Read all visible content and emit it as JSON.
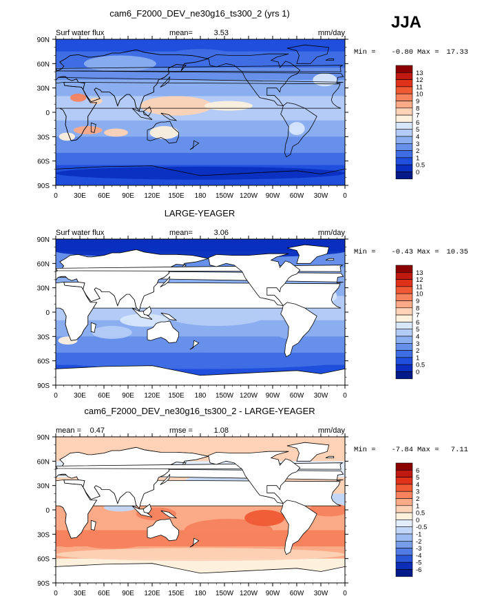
{
  "season": "JJA",
  "colors": {
    "land": "#ffffff",
    "frame": "#000000"
  },
  "lon_ticks": [
    "0",
    "30E",
    "60E",
    "90E",
    "120E",
    "150E",
    "180",
    "150W",
    "120W",
    "90W",
    "60W",
    "30W",
    "0"
  ],
  "lat_ticks": [
    "90N",
    "60N",
    "30N",
    "0",
    "30S",
    "60S",
    "90S"
  ],
  "chart_data": [
    {
      "type": "heatmap",
      "title": "cam6_F2000_DEV_ne30g16_ts300_2 (yrs 1)",
      "variable": "Surf water flux",
      "stat1_label": "mean=",
      "stat1_value": "3.53",
      "stat2_label": "",
      "stat2_value": "",
      "units": "mm/day",
      "min_label": "Min =",
      "min_value": "-0.80",
      "max_label": "Max =",
      "max_value": "17.33",
      "land_masked": false,
      "xlim": [
        0,
        360
      ],
      "ylim": [
        -90,
        90
      ],
      "colorbar_levels": [
        "13",
        "12",
        "11",
        "10",
        "9",
        "8",
        "7",
        "6",
        "5",
        "4",
        "3",
        "2",
        "1",
        "0.5",
        "0"
      ],
      "colorbar_colors": [
        "#8b0000",
        "#c01a10",
        "#e0321a",
        "#ef5a34",
        "#f7825e",
        "#fbaa88",
        "#fdd2b6",
        "#fdf0dd",
        "#d7e6fb",
        "#b3cbf6",
        "#8aaeef",
        "#6690ea",
        "#3f6ee4",
        "#1f4fdc",
        "#0a2fc0",
        "#001a8a"
      ],
      "field_regions": [
        {
          "lon": 150,
          "lat": 8,
          "rx": 45,
          "ry": 12,
          "value": 7
        },
        {
          "lon": 215,
          "lat": 8,
          "rx": 30,
          "ry": 6,
          "value": 6
        },
        {
          "lon": 40,
          "lat": -22,
          "rx": 18,
          "ry": 5,
          "value": 8
        },
        {
          "lon": 75,
          "lat": -25,
          "rx": 15,
          "ry": 5,
          "value": 7
        },
        {
          "lon": 135,
          "lat": -25,
          "rx": 18,
          "ry": 8,
          "value": 6
        },
        {
          "lon": 14,
          "lat": -30,
          "rx": 10,
          "ry": 5,
          "value": 6
        },
        {
          "lon": 28,
          "lat": 18,
          "rx": 10,
          "ry": 5,
          "value": 9
        },
        {
          "lon": 50,
          "lat": 14,
          "rx": 8,
          "ry": 4,
          "value": 7
        },
        {
          "lon": 300,
          "lat": -20,
          "rx": 10,
          "ry": 8,
          "value": 5
        },
        {
          "lon": 335,
          "lat": 40,
          "rx": 15,
          "ry": 8,
          "value": 5
        },
        {
          "lon": 80,
          "lat": 60,
          "rx": 45,
          "ry": 10,
          "value": 3
        },
        {
          "lon": 180,
          "lat": 70,
          "rx": 40,
          "ry": 8,
          "value": 1
        },
        {
          "lon": 180,
          "lat": -75,
          "rx": 180,
          "ry": 8,
          "value": 0
        }
      ]
    },
    {
      "type": "heatmap",
      "title": "LARGE-YEAGER",
      "variable": "Surf water flux",
      "stat1_label": "mean=",
      "stat1_value": "3.06",
      "stat2_label": "",
      "stat2_value": "",
      "units": "mm/day",
      "min_label": "Min =",
      "min_value": "-0.43",
      "max_label": "Max =",
      "max_value": "10.35",
      "land_masked": true,
      "xlim": [
        0,
        360
      ],
      "ylim": [
        -90,
        90
      ],
      "colorbar_levels": [
        "13",
        "12",
        "11",
        "10",
        "9",
        "8",
        "7",
        "6",
        "5",
        "4",
        "3",
        "2",
        "1",
        "0.5",
        "0"
      ],
      "colorbar_colors": [
        "#8b0000",
        "#c01a10",
        "#e0321a",
        "#ef5a34",
        "#f7825e",
        "#fbaa88",
        "#fdd2b6",
        "#fdf0dd",
        "#d7e6fb",
        "#b3cbf6",
        "#8aaeef",
        "#6690ea",
        "#3f6ee4",
        "#1f4fdc",
        "#0a2fc0",
        "#001a8a"
      ],
      "field_regions": [
        {
          "lon": 200,
          "lat": -5,
          "rx": 60,
          "ry": 12,
          "value": 4
        },
        {
          "lon": 110,
          "lat": -10,
          "rx": 30,
          "ry": 8,
          "value": 5
        },
        {
          "lon": 70,
          "lat": -25,
          "rx": 25,
          "ry": 8,
          "value": 4
        },
        {
          "lon": 15,
          "lat": -35,
          "rx": 12,
          "ry": 5,
          "value": 6
        },
        {
          "lon": 330,
          "lat": 20,
          "rx": 20,
          "ry": 10,
          "value": 5
        },
        {
          "lon": 290,
          "lat": -25,
          "rx": 15,
          "ry": 8,
          "value": 3
        },
        {
          "lon": 180,
          "lat": 75,
          "rx": 180,
          "ry": 8,
          "value": 0
        },
        {
          "lon": 180,
          "lat": -60,
          "rx": 180,
          "ry": 10,
          "value": 1
        }
      ]
    },
    {
      "type": "heatmap",
      "title": "cam6_F2000_DEV_ne30g16_ts300_2 - LARGE-YEAGER",
      "variable": "",
      "stat1_label": "mean =",
      "stat1_value": "0.47",
      "stat2_label": "rmse =",
      "stat2_value": "1.08",
      "units": "mm/day",
      "min_label": "Min =",
      "min_value": "-7.84",
      "max_label": "Max =",
      "max_value": "7.11",
      "land_masked": true,
      "xlim": [
        0,
        360
      ],
      "ylim": [
        -90,
        90
      ],
      "colorbar_levels": [
        "6",
        "5",
        "4",
        "3",
        "2",
        "1",
        "0.5",
        "0",
        "-0.5",
        "-1",
        "-2",
        "-3",
        "-4",
        "-5",
        "-6"
      ],
      "colorbar_colors": [
        "#8b0000",
        "#c01a10",
        "#e0321a",
        "#ef5a34",
        "#f7825e",
        "#fbaa88",
        "#fdd2b6",
        "#fdf0dd",
        "#e2ecfb",
        "#c2d6f7",
        "#9cbbf1",
        "#779de9",
        "#4f7be2",
        "#2a55d6",
        "#0d2fb8",
        "#001a8a"
      ],
      "field_regions": [
        {
          "lon": 215,
          "lat": -25,
          "rx": 55,
          "ry": 14,
          "value": 2
        },
        {
          "lon": 260,
          "lat": -10,
          "rx": 25,
          "ry": 10,
          "value": 3
        },
        {
          "lon": 70,
          "lat": -40,
          "rx": 40,
          "ry": 8,
          "value": 2
        },
        {
          "lon": 15,
          "lat": -40,
          "rx": 15,
          "ry": 6,
          "value": 2
        },
        {
          "lon": 125,
          "lat": -5,
          "rx": 25,
          "ry": 8,
          "value": 2
        },
        {
          "lon": 340,
          "lat": 0,
          "rx": 25,
          "ry": 8,
          "value": 2
        },
        {
          "lon": 175,
          "lat": 12,
          "rx": 50,
          "ry": 5,
          "value": -2
        },
        {
          "lon": 290,
          "lat": 15,
          "rx": 20,
          "ry": 6,
          "value": -2
        },
        {
          "lon": 80,
          "lat": 3,
          "rx": 20,
          "ry": 5,
          "value": -1
        },
        {
          "lon": 200,
          "lat": 35,
          "rx": 40,
          "ry": 8,
          "value": -1
        },
        {
          "lon": 180,
          "lat": -55,
          "rx": 180,
          "ry": 8,
          "value": 0.5
        }
      ]
    }
  ]
}
